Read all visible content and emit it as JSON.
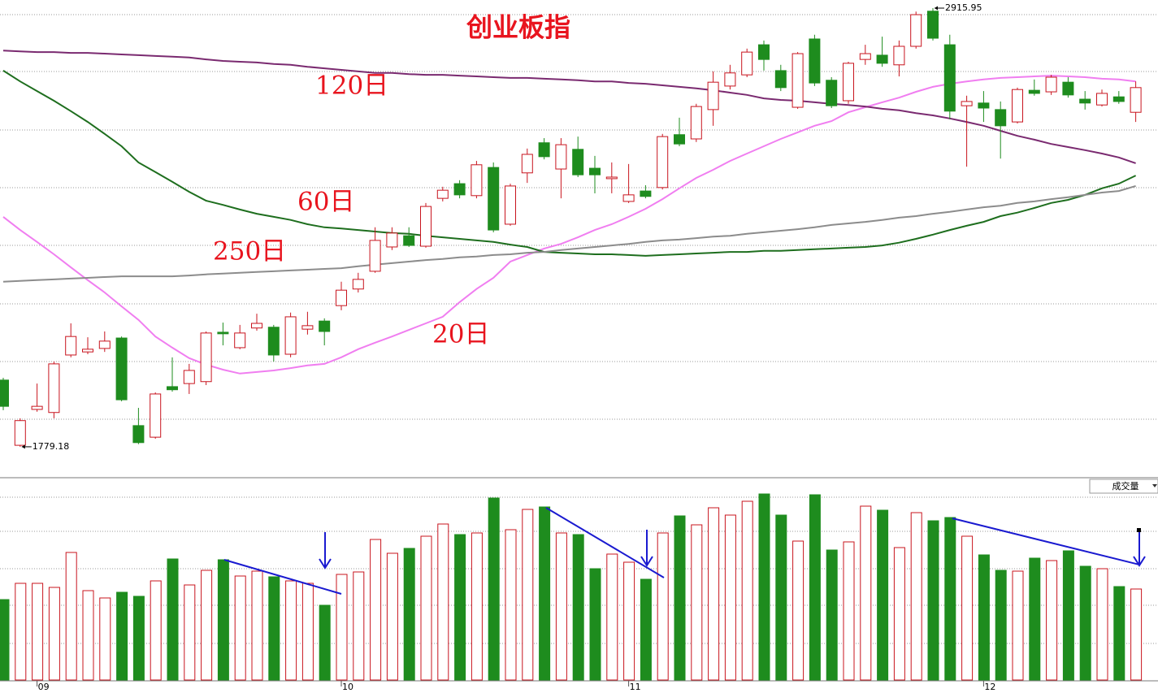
{
  "chart_data": {
    "type": "candlestick",
    "title": "创业板指",
    "categories": [
      null,
      null,
      "09",
      null,
      null,
      null,
      null,
      null,
      null,
      null,
      null,
      null,
      null,
      null,
      null,
      null,
      null,
      null,
      null,
      null,
      "10",
      null,
      null,
      null,
      null,
      null,
      null,
      null,
      null,
      null,
      null,
      null,
      null,
      null,
      null,
      null,
      null,
      "11",
      null,
      null,
      null,
      null,
      null,
      null,
      null,
      null,
      null,
      null,
      null,
      null,
      null,
      null,
      null,
      null,
      null,
      null,
      null,
      null,
      "12",
      null,
      null,
      null,
      null,
      null,
      null,
      null,
      null,
      null
    ],
    "open": [
      1952,
      1783,
      1876,
      1868,
      2017,
      2025,
      2034,
      2061,
      1834,
      1804,
      1935,
      1943,
      1948,
      2076,
      2036,
      2087,
      2089,
      2019,
      2084,
      2105,
      2145,
      2188,
      2234,
      2297,
      2326,
      2299,
      2423,
      2461,
      2430,
      2503,
      2356,
      2489,
      2567,
      2499,
      2550,
      2501,
      2474,
      2415,
      2442,
      2451,
      2588,
      2577,
      2653,
      2714,
      2743,
      2821,
      2754,
      2659,
      2836,
      2729,
      2676,
      2783,
      2794,
      2769,
      2817,
      2908,
      2821,
      2663,
      2670,
      2653,
      2621,
      2703,
      2699,
      2724,
      2680,
      2665,
      2686,
      2646
    ],
    "high": [
      1958,
      1853,
      1943,
      2000,
      2099,
      2063,
      2078,
      2065,
      1880,
      1920,
      2011,
      1994,
      2078,
      2101,
      2095,
      2124,
      2095,
      2127,
      2129,
      2112,
      2207,
      2230,
      2348,
      2348,
      2348,
      2411,
      2453,
      2470,
      2520,
      2516,
      2461,
      2552,
      2579,
      2579,
      2583,
      2533,
      2516,
      2512,
      2457,
      2590,
      2632,
      2668,
      2752,
      2769,
      2811,
      2832,
      2769,
      2802,
      2847,
      2737,
      2777,
      2821,
      2842,
      2832,
      2907,
      2915.95,
      2847,
      2689,
      2701,
      2674,
      2710,
      2731,
      2743,
      2737,
      2701,
      2705,
      2701,
      2726
    ],
    "low": [
      1874,
      1779.18,
      1870,
      1853,
      2011,
      2019,
      2025,
      1897,
      1786,
      1800,
      1922,
      1916,
      1939,
      2042,
      2032,
      2080,
      2000,
      2011,
      2070,
      2042,
      2133,
      2179,
      2230,
      2289,
      2297,
      2295,
      2415,
      2423,
      2423,
      2335,
      2352,
      2463,
      2524,
      2423,
      2478,
      2436,
      2436,
      2411,
      2423,
      2446,
      2558,
      2569,
      2611,
      2705,
      2737,
      2754,
      2701,
      2655,
      2714,
      2657,
      2668,
      2769,
      2764,
      2739,
      2811,
      2832,
      2628,
      2505,
      2621,
      2526,
      2617,
      2689,
      2691,
      2684,
      2653,
      2661,
      2668,
      2621
    ],
    "close": [
      1884,
      1847,
      1884,
      1994,
      2065,
      2032,
      2053,
      1901,
      1790,
      1916,
      1927,
      1977,
      2074,
      2072,
      2074,
      2099,
      2017,
      2116,
      2093,
      2078,
      2185,
      2213,
      2314,
      2333,
      2301,
      2402,
      2444,
      2432,
      2510,
      2341,
      2455,
      2537,
      2531,
      2562,
      2484,
      2484,
      2478,
      2432,
      2428,
      2583,
      2564,
      2661,
      2724,
      2748,
      2802,
      2783,
      2710,
      2798,
      2722,
      2663,
      2773,
      2798,
      2773,
      2817,
      2899,
      2838,
      2649,
      2674,
      2657,
      2611,
      2705,
      2695,
      2737,
      2691,
      2670,
      2695,
      2674,
      2710
    ],
    "up_color": "#c8141e",
    "down_color": "#1e8c1e",
    "ylim": [
      1699,
      2937
    ],
    "series": [
      {
        "name": "20日",
        "color": "#f07ef0",
        "values": [
          2375,
          2341,
          2310,
          2278,
          2244,
          2211,
          2179,
          2143,
          2108,
          2065,
          2036,
          2009,
          1992,
          1979,
          1969,
          1973,
          1977,
          1983,
          1990,
          1994,
          2011,
          2032,
          2049,
          2065,
          2082,
          2099,
          2116,
          2154,
          2188,
          2217,
          2259,
          2276,
          2293,
          2305,
          2322,
          2341,
          2356,
          2375,
          2396,
          2421,
          2449,
          2476,
          2497,
          2520,
          2539,
          2558,
          2577,
          2594,
          2611,
          2623,
          2646,
          2659,
          2672,
          2684,
          2699,
          2712,
          2720,
          2726,
          2731,
          2735,
          2737,
          2739,
          2741,
          2739,
          2737,
          2733,
          2731,
          2726
        ]
      },
      {
        "name": "60日",
        "color": "#1e6e1e",
        "values": [
          2754,
          2726,
          2701,
          2676,
          2649,
          2621,
          2590,
          2558,
          2516,
          2491,
          2466,
          2440,
          2417,
          2406,
          2394,
          2383,
          2375,
          2367,
          2356,
          2348,
          2345,
          2341,
          2337,
          2333,
          2331,
          2326,
          2322,
          2318,
          2314,
          2310,
          2303,
          2297,
          2284,
          2282,
          2280,
          2278,
          2278,
          2276,
          2274,
          2276,
          2278,
          2280,
          2282,
          2284,
          2284,
          2287,
          2287,
          2289,
          2291,
          2293,
          2295,
          2297,
          2301,
          2308,
          2318,
          2329,
          2341,
          2352,
          2362,
          2377,
          2386,
          2398,
          2411,
          2419,
          2432,
          2449,
          2461,
          2482
        ]
      },
      {
        "name": "120日",
        "color": "#7a2a70",
        "values": [
          2806,
          2804,
          2802,
          2802,
          2800,
          2800,
          2798,
          2796,
          2794,
          2792,
          2790,
          2788,
          2783,
          2779,
          2777,
          2775,
          2771,
          2769,
          2764,
          2760,
          2756,
          2752,
          2748,
          2748,
          2745,
          2743,
          2743,
          2741,
          2739,
          2737,
          2735,
          2735,
          2733,
          2731,
          2729,
          2726,
          2726,
          2722,
          2720,
          2716,
          2712,
          2708,
          2703,
          2697,
          2691,
          2682,
          2678,
          2676,
          2672,
          2668,
          2665,
          2661,
          2655,
          2651,
          2644,
          2638,
          2630,
          2621,
          2611,
          2598,
          2585,
          2575,
          2564,
          2556,
          2548,
          2539,
          2529,
          2514
        ]
      },
      {
        "name": "250日",
        "color": "#8c8c8c",
        "values": [
          2207,
          2209,
          2211,
          2213,
          2215,
          2217,
          2219,
          2221,
          2221,
          2221,
          2221,
          2223,
          2226,
          2228,
          2230,
          2232,
          2234,
          2236,
          2238,
          2240,
          2242,
          2247,
          2251,
          2255,
          2259,
          2263,
          2266,
          2270,
          2272,
          2276,
          2278,
          2282,
          2284,
          2289,
          2293,
          2297,
          2301,
          2305,
          2310,
          2314,
          2316,
          2320,
          2324,
          2326,
          2331,
          2335,
          2339,
          2343,
          2348,
          2354,
          2358,
          2362,
          2367,
          2373,
          2377,
          2383,
          2388,
          2394,
          2400,
          2404,
          2411,
          2415,
          2421,
          2426,
          2432,
          2438,
          2442,
          2455
        ]
      }
    ],
    "volume": {
      "name": "成交量",
      "ylim": [
        0,
        237
      ],
      "values": [
        99,
        119,
        119,
        114,
        157,
        110,
        101,
        108,
        103,
        122,
        149,
        117,
        135,
        148,
        128,
        134,
        127,
        122,
        119,
        92,
        130,
        133,
        173,
        156,
        162,
        177,
        192,
        179,
        181,
        224,
        185,
        210,
        213,
        181,
        179,
        137,
        155,
        145,
        124,
        181,
        202,
        191,
        212,
        203,
        220,
        229,
        203,
        171,
        228,
        160,
        170,
        214,
        209,
        163,
        206,
        196,
        200,
        177,
        154,
        135,
        134,
        150,
        147,
        159,
        140,
        137,
        115,
        112
      ]
    }
  }
}
